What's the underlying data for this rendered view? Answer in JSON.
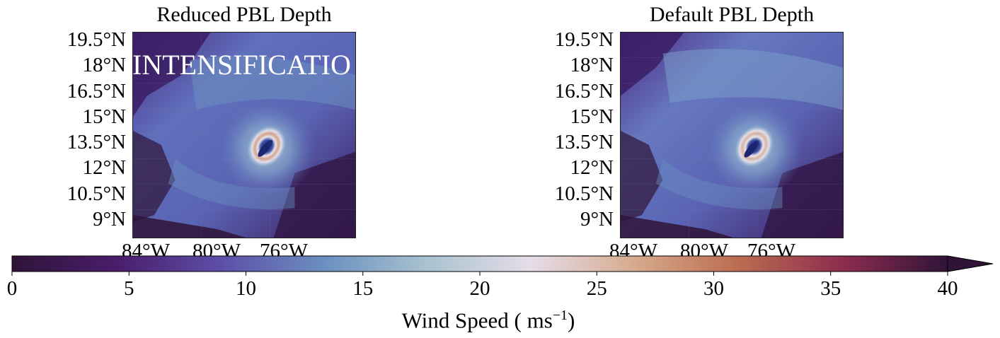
{
  "panels": [
    {
      "title": "Reduced PBL Depth",
      "annotation": "INTENSIFICATIO",
      "lat_ticks": [
        "19.5°N",
        "18°N",
        "16.5°N",
        "15°N",
        "13.5°N",
        "12°N",
        "10.5°N",
        "9°N"
      ],
      "lon_ticks": [
        "84°W",
        "80°W",
        "76°W"
      ]
    },
    {
      "title": "Default PBL Depth",
      "annotation": "",
      "lat_ticks": [
        "19.5°N",
        "18°N",
        "16.5°N",
        "15°N",
        "13.5°N",
        "12°N",
        "10.5°N",
        "9°N"
      ],
      "lon_ticks": [
        "84°W",
        "80°W",
        "76°W"
      ]
    }
  ],
  "colorbar": {
    "label": "Wind Speed",
    "unit_base": "ms",
    "unit_exponent": "−1",
    "ticks": [
      "0",
      "5",
      "10",
      "15",
      "20",
      "25",
      "30",
      "35",
      "40"
    ],
    "min": 0,
    "max": 40,
    "extend": "max",
    "colormap": "twilight_shifted",
    "colors": [
      "#2f1438",
      "#4a1d6b",
      "#5d4ea8",
      "#6b8fc0",
      "#a9c3d0",
      "#e6dde8",
      "#d6a98c",
      "#bb6b50",
      "#8c2c4f",
      "#2f1438"
    ]
  },
  "chart_data": {
    "type": "heatmap",
    "title": "",
    "maps": [
      "Reduced PBL Depth",
      "Default PBL Depth"
    ],
    "variable": "Wind Speed",
    "units": "ms^-1",
    "value_range": [
      0,
      40
    ],
    "lat_range_label": [
      "9°N",
      "19.5°N"
    ],
    "lon_range_label": [
      "84°W",
      "76°W"
    ]
  }
}
